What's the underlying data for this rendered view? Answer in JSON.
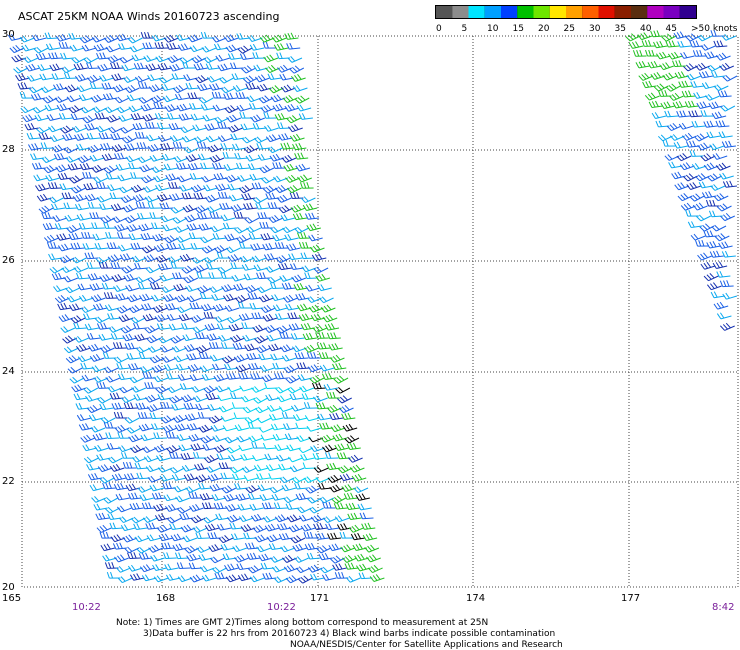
{
  "title": "ASCAT 25KM NOAA Winds 20160723 ascending",
  "legend": {
    "colors": [
      "#555555",
      "#8c8c8c",
      "#00e5ff",
      "#00a0ff",
      "#0040ff",
      "#00c000",
      "#6ee600",
      "#ffe600",
      "#ffa000",
      "#ff6000",
      "#e01000",
      "#8a1e00",
      "#5a2e10",
      "#b000c0",
      "#7a00c0",
      "#300090"
    ],
    "labels": [
      "0",
      "5",
      "10",
      "15",
      "20",
      "25",
      "30",
      "35",
      "40",
      "45",
      ">50 knots"
    ]
  },
  "axes": {
    "lat_labels": [
      "30",
      "28",
      "26",
      "24",
      "22",
      "20"
    ],
    "lon_labels": [
      "165",
      "168",
      "171",
      "174",
      "177"
    ]
  },
  "pass_times": [
    "10:22",
    "10:22",
    "8:42"
  ],
  "notes": [
    "Note: 1) Times are GMT 2)Times along bottom correspond to measurement at 25N",
    "3)Data buffer is 22 hrs from 20160723 4) Black wind barbs indicate possible contamination",
    "NOAA/NESDIS/Center for Satellite Applications and Research"
  ]
}
